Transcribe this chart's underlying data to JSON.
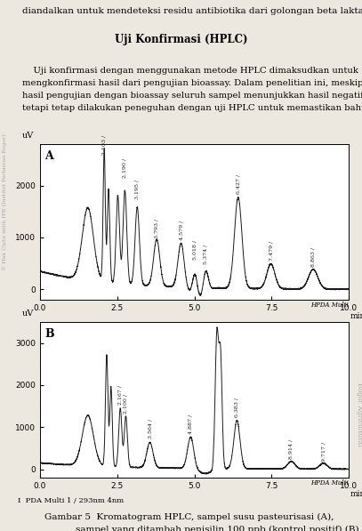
{
  "header_text": "diandalkan untuk mendeteksi residu antibiotika dari golongan beta laktam.",
  "title_text": "Uji Konfirmasi (HPLC)",
  "para_line1": "    Uji konfirmasi dengan menggunakan metode HPLC dimaksudkan untuk",
  "para_line2": "mengkonfirmasi hasil dari pengujian ",
  "para_line2b": "bioassay",
  "para_line2c": ". Dalam penelitian ini, meskipun",
  "para_line3": "hasil pengujian dengan ",
  "para_line3b": "bioassay",
  "para_line3c": " seluruh sampel menunjukkan hasil negatif, akan",
  "para_line4": "tetapi tetap dilakukan peneguhan dengan uji HPLC untuk memastikan bahwa hasil",
  "footer_text": "I  PDA Multi 1 / 293nm 4nm",
  "hpda_label": "HPDA Multi",
  "caption_line1": "Gambar 5  Kromatogram HPLC, sampel susu pasteurisasi (A),",
  "caption_line2": "sampel yang ditambah penisilin 100 ppb (kontrol positif) (B).",
  "plot_A": {
    "label": "A",
    "ylabel": "uV",
    "ylim": [
      -200,
      2800
    ],
    "yticks": [
      0,
      1000,
      2000
    ],
    "xlim": [
      0.0,
      10.0
    ],
    "xticks": [
      0.0,
      2.5,
      5.0,
      7.5,
      10.0
    ],
    "xlabel": "min"
  },
  "plot_B": {
    "label": "B",
    "ylabel": "uV",
    "ylim": [
      -200,
      3500
    ],
    "yticks": [
      0,
      1000,
      2000,
      3000
    ],
    "xlim": [
      0.0,
      10.0
    ],
    "xticks": [
      0.0,
      2.5,
      5.0,
      7.5,
      10.0
    ],
    "xlabel": "min"
  },
  "bg_color": "#ece8e0",
  "plot_bg": "#ffffff",
  "line_color": "#1a1a1a",
  "text_color": "#1a1a1a",
  "watermark_color": "#aaaaaa",
  "font_size_header": 7.5,
  "font_size_title": 8.5,
  "font_size_para": 7.2,
  "font_size_axis": 6.5,
  "font_size_peak": 4.5,
  "font_size_caption": 7.5,
  "font_size_footer": 6.0
}
